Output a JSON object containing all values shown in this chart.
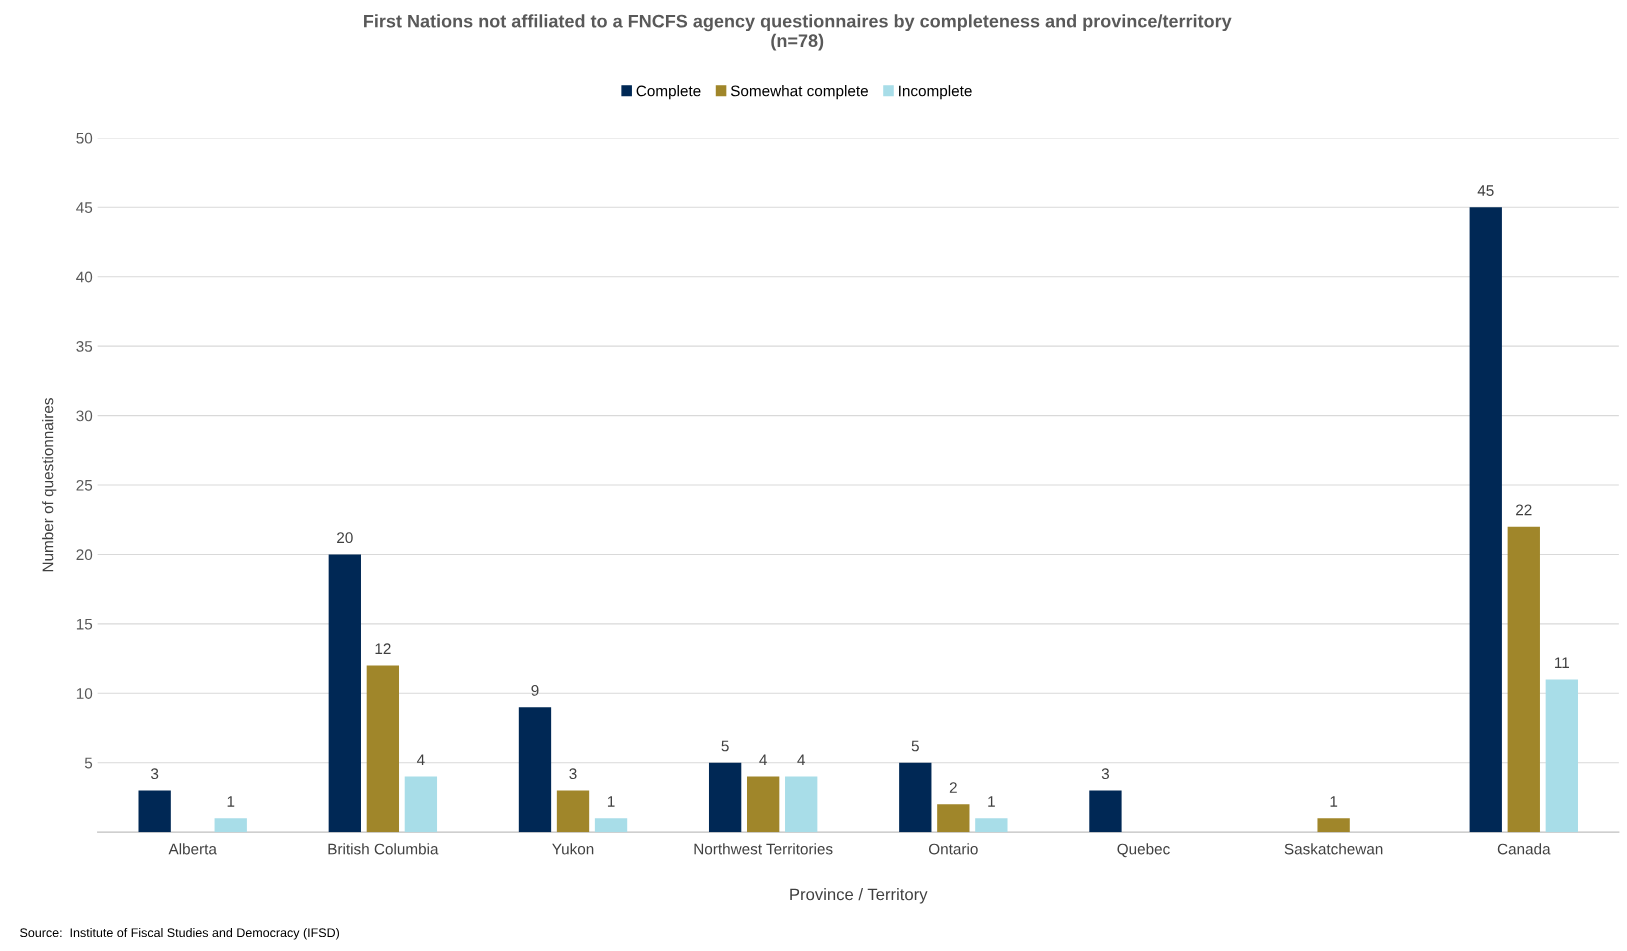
{
  "chart_data": {
    "type": "bar",
    "title": "First Nations not affiliated to a FNCFS agency questionnaires by completeness and province/territory\n(n=78)",
    "xlabel": "Province / Territory",
    "ylabel": "Number of questionnaires",
    "categories": [
      "Alberta",
      "British Columbia",
      "Yukon",
      "Northwest Territories",
      "Ontario",
      "Quebec",
      "Saskatchewan",
      "Canada"
    ],
    "series": [
      {
        "name": "Complete",
        "color": "#002855",
        "values": [
          3,
          20,
          9,
          5,
          5,
          3,
          null,
          45
        ]
      },
      {
        "name": "Somewhat complete",
        "color": "#a0862a",
        "values": [
          null,
          12,
          3,
          4,
          2,
          null,
          1,
          22
        ]
      },
      {
        "name": "Incomplete",
        "color": "#a8dde8",
        "values": [
          1,
          4,
          1,
          4,
          1,
          null,
          null,
          11
        ]
      }
    ],
    "ylim": [
      0,
      50
    ],
    "yticks": [
      5,
      10,
      15,
      20,
      25,
      30,
      35,
      40,
      45,
      50
    ],
    "grid": "y",
    "legend": "top",
    "data_labels": true,
    "annotations": [
      "Source:  Institute of Fiscal Studies and Democracy (IFSD)"
    ]
  }
}
